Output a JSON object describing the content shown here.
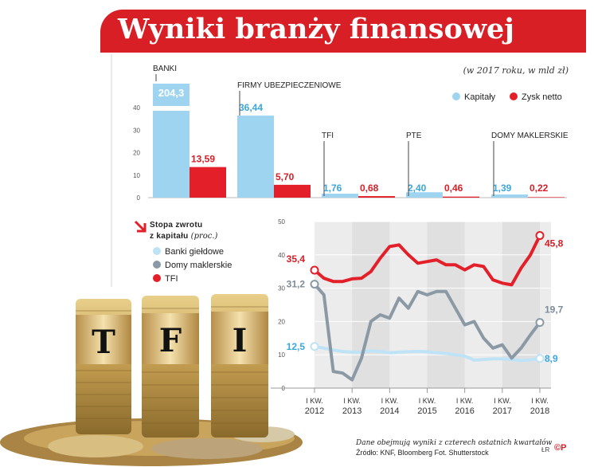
{
  "title": "Wyniki branży finansowej",
  "subtitle": "(w 2017 roku, w mld zł)",
  "colors": {
    "kapitaly": "#9fd4f1",
    "zysk": "#e3202a",
    "banki": "#bfe3f6",
    "domy": "#8b99a5",
    "tfi": "#e3202a",
    "banner": "#d91f26"
  },
  "legend_top": {
    "kapitaly": "Kapitały",
    "zysk": "Zysk netto"
  },
  "left_title_line1": "Stopa zwrotu",
  "left_title_line2": "z kapitału",
  "left_title_unit": "(proc.)",
  "legend_left": {
    "banki": "Banki giełdowe",
    "domy": "Domy maklerskie",
    "tfi": "TFI"
  },
  "footer_line1": "Dane obejmują wyniki z czterech ostatnich kwartałów",
  "footer_line2": "Źródło: KNF, Bloomberg        Fot. Shutterstock",
  "credit": "ŁR",
  "logo": "©P",
  "coin_labels": [
    "T",
    "F",
    "I"
  ],
  "chart_data": [
    {
      "type": "bar",
      "categories": [
        "BANKI",
        "FIRMY UBEZPIECZENIOWE",
        "TFI",
        "PTE",
        "DOMY MAKLERSKIE"
      ],
      "series": [
        {
          "name": "Kapitały",
          "values": [
            204.3,
            36.44,
            1.76,
            2.4,
            1.39
          ],
          "labels": [
            "204,3",
            "36,44",
            "1,76",
            "2,40",
            "1,39"
          ]
        },
        {
          "name": "Zysk netto",
          "values": [
            13.59,
            5.7,
            0.68,
            0.46,
            0.22
          ],
          "labels": [
            "13,59",
            "5,70",
            "0,68",
            "0,46",
            "0,22"
          ]
        }
      ],
      "yticks": [
        "0",
        "10",
        "20",
        "30",
        "40"
      ],
      "ylim": [
        0,
        40
      ],
      "axis_break": true
    },
    {
      "type": "line",
      "xticks": [
        "I KW. 2012",
        "I KW. 2013",
        "I KW. 2014",
        "I KW. 2015",
        "I KW. 2016",
        "I KW. 2017",
        "I KW. 2018"
      ],
      "xlim": [
        2012,
        2018
      ],
      "ylim": [
        0,
        50
      ],
      "yticks": [
        "0",
        "10",
        "20",
        "30",
        "40",
        "50"
      ],
      "series": [
        {
          "name": "Banki giełdowe",
          "x": [
            2012,
            2012.25,
            2012.5,
            2012.75,
            2013,
            2013.25,
            2013.5,
            2013.75,
            2014,
            2014.25,
            2014.5,
            2014.75,
            2015,
            2015.25,
            2015.5,
            2015.75,
            2016,
            2016.25,
            2016.5,
            2016.75,
            2017,
            2017.25,
            2017.5,
            2017.75,
            2018
          ],
          "y": [
            12.5,
            12.0,
            11.4,
            11.0,
            10.8,
            10.8,
            11.2,
            11.0,
            10.6,
            10.8,
            10.9,
            11.0,
            10.9,
            10.6,
            10.4,
            10.0,
            9.6,
            8.4,
            8.6,
            8.8,
            8.8,
            8.6,
            8.3,
            8.5,
            8.9
          ],
          "start_label": "12,5",
          "end_label": "8,9"
        },
        {
          "name": "Domy maklerskie",
          "x": [
            2012,
            2012.25,
            2012.5,
            2012.75,
            2013,
            2013.25,
            2013.5,
            2013.75,
            2014,
            2014.25,
            2014.5,
            2014.75,
            2015,
            2015.25,
            2015.5,
            2015.75,
            2016,
            2016.25,
            2016.5,
            2016.75,
            2017,
            2017.25,
            2017.5,
            2017.75,
            2018
          ],
          "y": [
            31.2,
            28.0,
            5.0,
            4.5,
            2.5,
            9.0,
            20.0,
            22.0,
            21.0,
            27.0,
            24.0,
            29.0,
            28.0,
            29.0,
            29.0,
            24.0,
            19.0,
            20.0,
            15.0,
            12.0,
            13.0,
            9.0,
            12.0,
            16.0,
            19.7
          ],
          "start_label": "31,2",
          "end_label": "19,7"
        },
        {
          "name": "TFI",
          "x": [
            2012,
            2012.25,
            2012.5,
            2012.75,
            2013,
            2013.25,
            2013.5,
            2013.75,
            2014,
            2014.25,
            2014.5,
            2014.75,
            2015,
            2015.25,
            2015.5,
            2015.75,
            2016,
            2016.25,
            2016.5,
            2016.75,
            2017,
            2017.25,
            2017.5,
            2017.75,
            2018
          ],
          "y": [
            35.4,
            33.0,
            32.0,
            32.0,
            32.8,
            33.0,
            35.0,
            39.0,
            42.5,
            43.0,
            40.0,
            37.5,
            38.0,
            38.5,
            37.0,
            37.0,
            35.5,
            37.0,
            36.5,
            32.5,
            31.5,
            31.0,
            36.0,
            40.0,
            45.8
          ],
          "start_label": "35,4",
          "end_label": "45,8"
        }
      ]
    }
  ]
}
